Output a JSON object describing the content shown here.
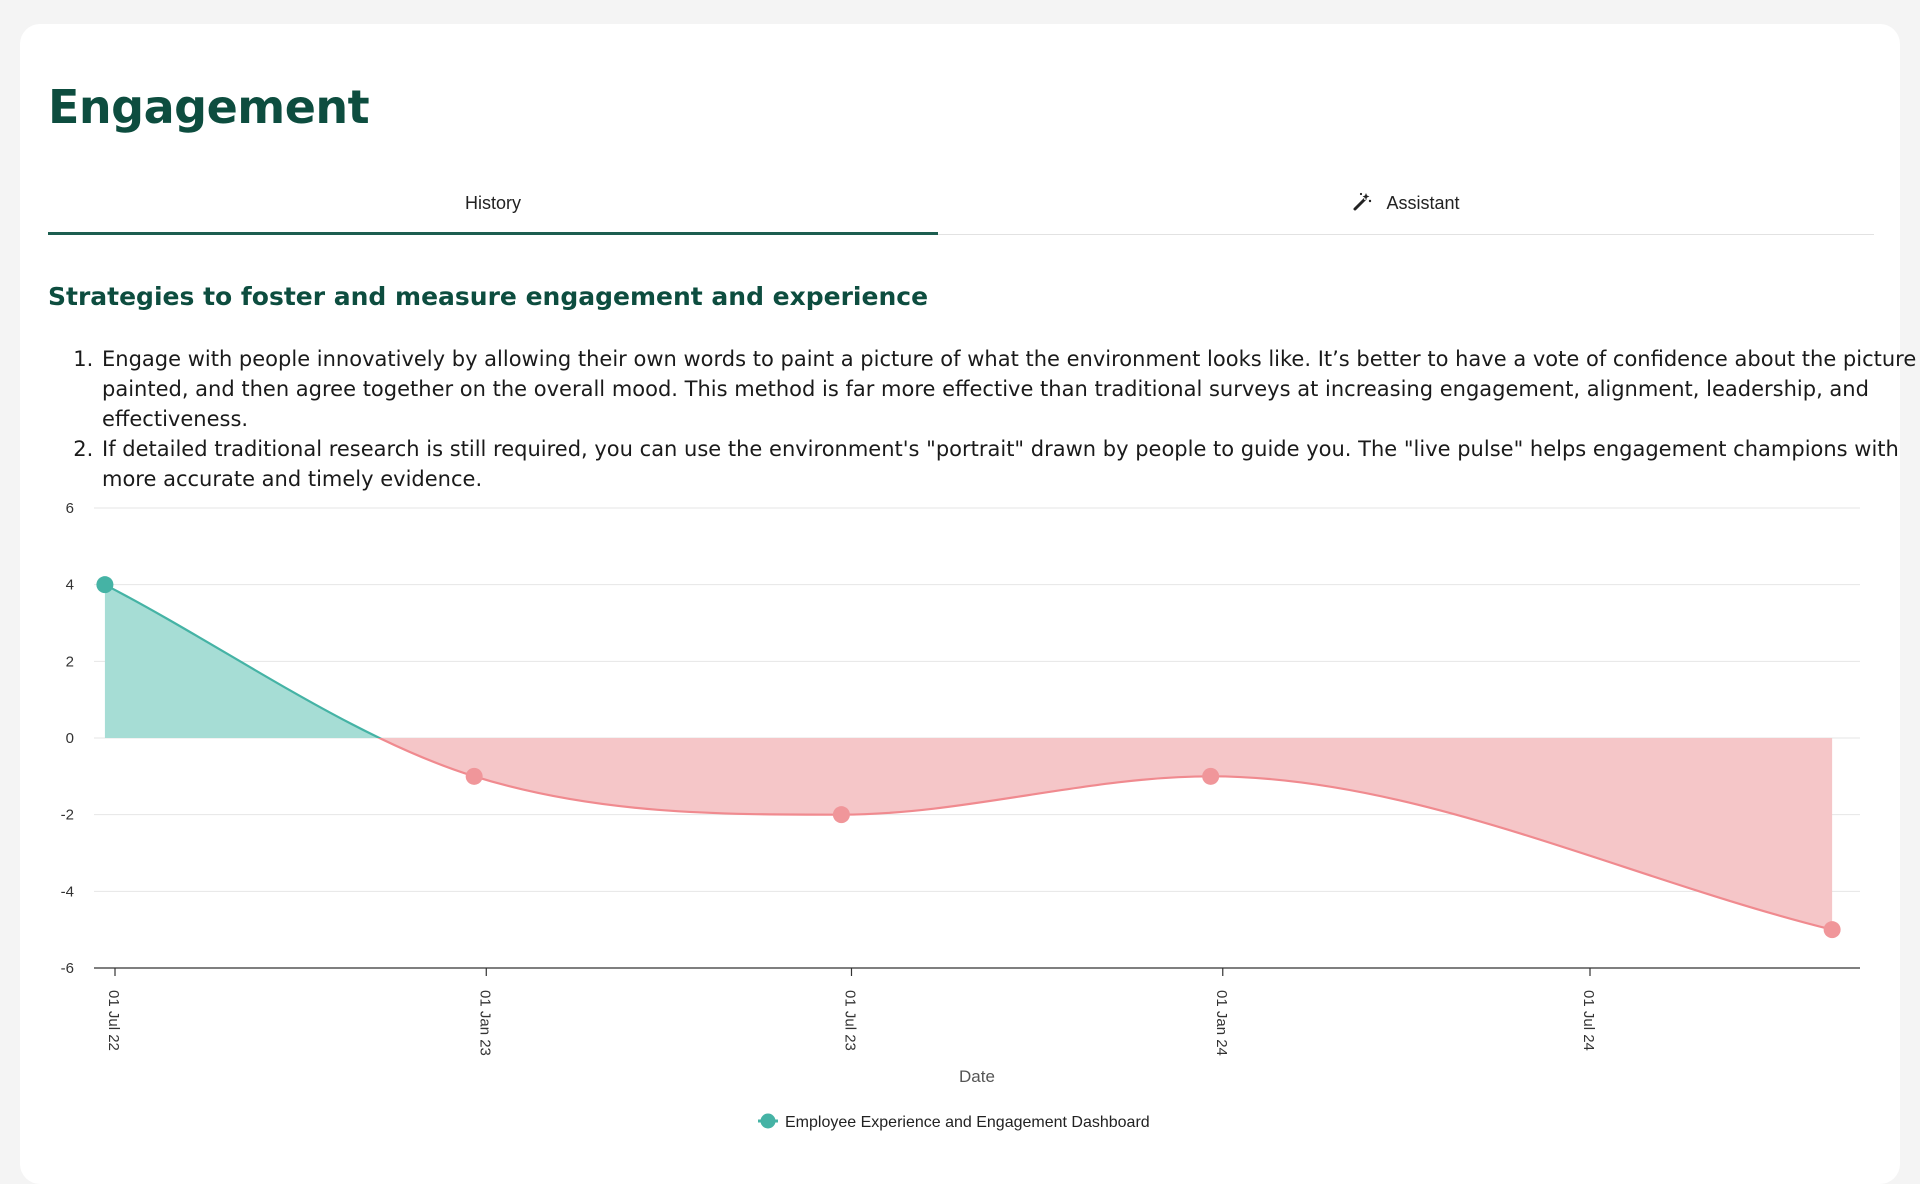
{
  "page": {
    "title": "Engagement",
    "tabs": [
      {
        "label": "History",
        "active": true
      },
      {
        "label": "Assistant",
        "icon": "magic-wand-icon",
        "active": false
      }
    ],
    "section_title": "Strategies to foster and measure engagement and experience",
    "strategies": [
      "Engage with people innovatively by allowing their own words to paint a picture of what the environment looks like. It’s better to have a vote of confidence about the picture painted, and then agree together on the overall mood. This method is far more effective than traditional surveys at increasing engagement, alignment, leadership, and effectiveness.",
      "If detailed traditional research is still required, you can use the environment's \"portrait\" drawn by people to guide you. The \"live pulse\" helps engagement champions with more accurate and timely evidence."
    ]
  },
  "colors": {
    "heading": "#0d4d3f",
    "tab_underline": "#1c5e50",
    "positive_line": "#45b3a5",
    "positive_fill": "#a6ddd5",
    "negative_line": "#f08a8f",
    "negative_fill": "#f5c6c8",
    "negative_point": "#f0969a"
  },
  "chart_data": {
    "type": "area",
    "xlabel": "Date",
    "ylabel": "",
    "ylim": [
      -6,
      6
    ],
    "yticks": [
      "6",
      "4",
      "2",
      "0",
      "-2",
      "-4",
      "-6"
    ],
    "xticks": [
      "01 Jul 22",
      "01 Jan 23",
      "01 Jul 23",
      "01 Jan 24",
      "01 Jul 24"
    ],
    "xtick_dates": [
      "2022-07-01",
      "2023-01-01",
      "2023-07-01",
      "2024-01-01",
      "2024-07-01"
    ],
    "grid": true,
    "legend_position": "bottom",
    "series": [
      {
        "name": "Employee Experience and Engagement Dashboard",
        "points": [
          {
            "x": "2022-06-26",
            "y": 4
          },
          {
            "x": "2022-12-26",
            "y": -1
          },
          {
            "x": "2023-06-26",
            "y": -2
          },
          {
            "x": "2023-12-26",
            "y": -1
          },
          {
            "x": "2024-10-29",
            "y": -5
          }
        ]
      }
    ]
  }
}
